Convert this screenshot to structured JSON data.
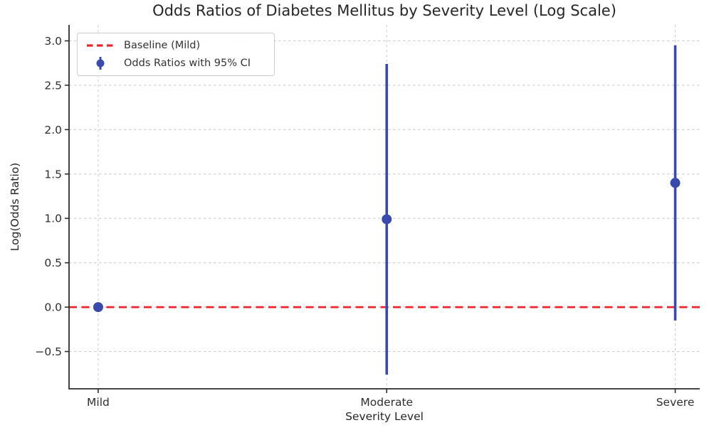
{
  "chart_data": {
    "type": "scatter",
    "title": "Odds Ratios of Diabetes Mellitus by Severity Level (Log Scale)",
    "xlabel": "Severity Level",
    "ylabel": "Log(Odds Ratio)",
    "categories": [
      "Mild",
      "Moderate",
      "Severe"
    ],
    "series": [
      {
        "name": "Odds Ratios with 95% CI",
        "values": [
          0.0,
          0.99,
          1.4
        ],
        "ci_low": [
          0.0,
          -0.76,
          -0.15
        ],
        "ci_high": [
          0.0,
          2.74,
          2.95
        ]
      }
    ],
    "baseline": {
      "label": "Baseline (Mild)",
      "y": 0.0
    },
    "yticks": [
      -0.5,
      0.0,
      0.5,
      1.0,
      1.5,
      2.0,
      2.5,
      3.0
    ],
    "ylim": [
      -0.92,
      3.18
    ],
    "xlim": [
      -0.101,
      2.085
    ],
    "grid": "dashed",
    "legend_position": "upper-left",
    "colors": {
      "point": "#3a4aac",
      "baseline": "#e8262c",
      "grid": "#cfcfcf",
      "spine": "#2d2d2d",
      "text": "#2e2e2e"
    }
  }
}
